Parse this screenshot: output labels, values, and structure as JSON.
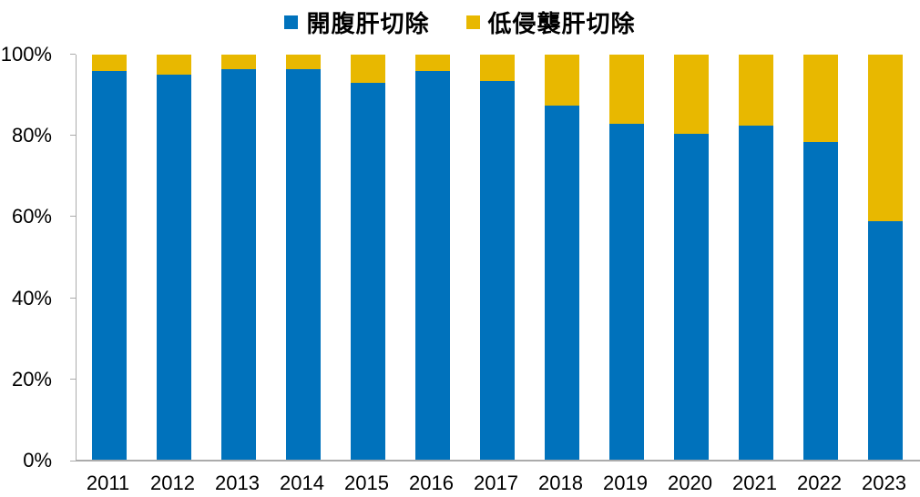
{
  "chart_data": {
    "type": "bar",
    "stacked": true,
    "percent_stacked": true,
    "title": "",
    "xlabel": "",
    "ylabel": "",
    "unit": "%",
    "categories": [
      "2011",
      "2012",
      "2013",
      "2014",
      "2015",
      "2016",
      "2017",
      "2018",
      "2019",
      "2020",
      "2021",
      "2022",
      "2023"
    ],
    "series": [
      {
        "name": "開腹肝切除",
        "color": "#0072BC",
        "values": [
          96,
          95,
          96.5,
          96.5,
          93,
          96,
          93.5,
          87.5,
          83,
          80.5,
          82.5,
          78.5,
          59
        ]
      },
      {
        "name": "低侵襲肝切除",
        "color": "#E8B800",
        "values": [
          4,
          5,
          3.5,
          3.5,
          7,
          4,
          6.5,
          12.5,
          17,
          19.5,
          17.5,
          21.5,
          41
        ]
      }
    ],
    "ylim": [
      0,
      100
    ],
    "yticks": [
      {
        "value": 0,
        "label": "0%"
      },
      {
        "value": 20,
        "label": "20%"
      },
      {
        "value": 40,
        "label": "40%"
      },
      {
        "value": 60,
        "label": "60%"
      },
      {
        "value": 80,
        "label": "80%"
      },
      {
        "value": 100,
        "label": "100%"
      }
    ],
    "grid": false,
    "legend_position": "top",
    "axis_color": "#ABABAB",
    "text_color": "#000000",
    "background_color": "#FFFFFF"
  }
}
